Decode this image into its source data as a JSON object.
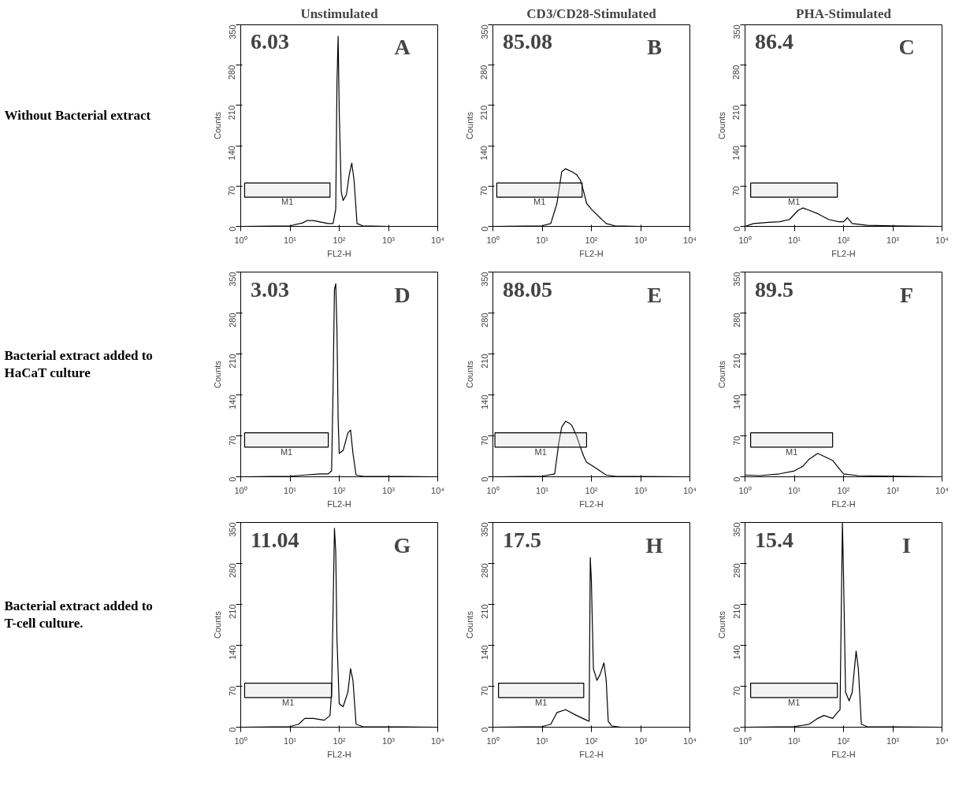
{
  "chart_data": [
    {
      "type": "line",
      "title": "Unstimulated",
      "xlabel": "FL2-H",
      "ylabel": "Counts",
      "log": "x",
      "grid": false,
      "xlim": [
        1,
        10000
      ],
      "xticks": [
        {
          "value": 1,
          "label": "10⁰"
        },
        {
          "value": 10,
          "label": "10¹"
        },
        {
          "value": 100,
          "label": "10²"
        },
        {
          "value": 1000,
          "label": "10³"
        },
        {
          "value": 10000,
          "label": "10⁴"
        }
      ],
      "ylim": [
        0,
        350
      ],
      "yticks": [
        0,
        70,
        140,
        210,
        280,
        350
      ],
      "annotations": [
        "6.03",
        "A",
        "Without Bacterial extract"
      ],
      "bands": [
        {
          "axis": "x",
          "from": 1.2,
          "to": 65,
          "label": "M1"
        }
      ],
      "series": [
        {
          "color": "#000000",
          "x": [
            1,
            10,
            18,
            22,
            30,
            45,
            60,
            75,
            85,
            90,
            95,
            100,
            110,
            120,
            140,
            160,
            180,
            200,
            230,
            300,
            1000,
            10000
          ],
          "values": [
            0,
            1,
            6,
            10,
            10,
            7,
            5,
            5,
            30,
            250,
            330,
            200,
            60,
            45,
            55,
            90,
            110,
            80,
            5,
            1,
            0,
            0
          ]
        }
      ]
    },
    {
      "type": "line",
      "title": "CD3/CD28-Stimulated",
      "xlabel": "FL2-H",
      "ylabel": "Counts",
      "log": "x",
      "grid": false,
      "xlim": [
        1,
        10000
      ],
      "xticks": [
        {
          "value": 1,
          "label": "10⁰"
        },
        {
          "value": 10,
          "label": "10¹"
        },
        {
          "value": 100,
          "label": "10²"
        },
        {
          "value": 1000,
          "label": "10³"
        },
        {
          "value": 10000,
          "label": "10⁴"
        }
      ],
      "ylim": [
        0,
        350
      ],
      "yticks": [
        0,
        70,
        140,
        210,
        280,
        350
      ],
      "annotations": [
        "85.08",
        "B"
      ],
      "bands": [
        {
          "axis": "x",
          "from": 1.2,
          "to": 65,
          "label": "M1"
        }
      ],
      "series": [
        {
          "color": "#000000",
          "x": [
            1,
            10,
            15,
            20,
            25,
            30,
            40,
            50,
            60,
            70,
            80,
            100,
            150,
            200,
            300,
            1000,
            10000
          ],
          "values": [
            0,
            1,
            5,
            40,
            95,
            100,
            95,
            90,
            80,
            60,
            40,
            30,
            15,
            5,
            1,
            0,
            0
          ]
        }
      ]
    },
    {
      "type": "line",
      "title": "PHA-Stimulated",
      "xlabel": "FL2-H",
      "ylabel": "Counts",
      "log": "x",
      "grid": false,
      "xlim": [
        1,
        10000
      ],
      "xticks": [
        {
          "value": 1,
          "label": "10⁰"
        },
        {
          "value": 10,
          "label": "10¹"
        },
        {
          "value": 100,
          "label": "10²"
        },
        {
          "value": 1000,
          "label": "10³"
        },
        {
          "value": 10000,
          "label": "10⁴"
        }
      ],
      "ylim": [
        0,
        350
      ],
      "yticks": [
        0,
        70,
        140,
        210,
        280,
        350
      ],
      "annotations": [
        "86.4",
        "C"
      ],
      "bands": [
        {
          "axis": "x",
          "from": 1.3,
          "to": 75,
          "label": "M1"
        }
      ],
      "series": [
        {
          "color": "#000000",
          "x": [
            1,
            1.5,
            3,
            5,
            8,
            12,
            15,
            20,
            30,
            50,
            80,
            100,
            120,
            150,
            300,
            1000,
            10000
          ],
          "values": [
            0,
            5,
            7,
            8,
            12,
            28,
            32,
            28,
            22,
            12,
            8,
            8,
            15,
            5,
            2,
            1,
            0
          ]
        }
      ]
    },
    {
      "type": "line",
      "xlabel": "FL2-H",
      "ylabel": "Counts",
      "log": "x",
      "grid": false,
      "xlim": [
        1,
        10000
      ],
      "xticks": [
        {
          "value": 1,
          "label": "10⁰"
        },
        {
          "value": 10,
          "label": "10¹"
        },
        {
          "value": 100,
          "label": "10²"
        },
        {
          "value": 1000,
          "label": "10³"
        },
        {
          "value": 10000,
          "label": "10⁴"
        }
      ],
      "ylim": [
        0,
        350
      ],
      "yticks": [
        0,
        70,
        140,
        210,
        280,
        350
      ],
      "annotations": [
        "3.03",
        "D",
        "Bacterial extract added to HaCaT culture"
      ],
      "bands": [
        {
          "axis": "x",
          "from": 1.2,
          "to": 60,
          "label": "M1"
        }
      ],
      "series": [
        {
          "color": "#000000",
          "x": [
            1,
            10,
            20,
            40,
            60,
            70,
            75,
            80,
            85,
            90,
            95,
            100,
            120,
            150,
            170,
            190,
            220,
            300,
            10000
          ],
          "values": [
            0,
            1,
            3,
            5,
            5,
            10,
            150,
            320,
            330,
            250,
            100,
            40,
            45,
            75,
            80,
            40,
            3,
            1,
            0
          ]
        }
      ]
    },
    {
      "type": "line",
      "xlabel": "FL2-H",
      "ylabel": "Counts",
      "log": "x",
      "grid": false,
      "xlim": [
        1,
        10000
      ],
      "xticks": [
        {
          "value": 1,
          "label": "10⁰"
        },
        {
          "value": 10,
          "label": "10¹"
        },
        {
          "value": 100,
          "label": "10²"
        },
        {
          "value": 1000,
          "label": "10³"
        },
        {
          "value": 10000,
          "label": "10⁴"
        }
      ],
      "ylim": [
        0,
        350
      ],
      "yticks": [
        0,
        70,
        140,
        210,
        280,
        350
      ],
      "annotations": [
        "88.05",
        "E"
      ],
      "bands": [
        {
          "axis": "x",
          "from": 1.1,
          "to": 80,
          "label": "M1"
        }
      ],
      "series": [
        {
          "color": "#000000",
          "x": [
            1,
            10,
            18,
            22,
            25,
            30,
            35,
            40,
            50,
            60,
            70,
            80,
            100,
            150,
            200,
            300,
            10000
          ],
          "values": [
            0,
            1,
            5,
            60,
            85,
            95,
            92,
            88,
            70,
            50,
            35,
            25,
            20,
            10,
            3,
            1,
            0
          ]
        }
      ]
    },
    {
      "type": "line",
      "xlabel": "FL2-H",
      "ylabel": "Counts",
      "log": "x",
      "grid": false,
      "xlim": [
        1,
        10000
      ],
      "xticks": [
        {
          "value": 1,
          "label": "10⁰"
        },
        {
          "value": 10,
          "label": "10¹"
        },
        {
          "value": 100,
          "label": "10²"
        },
        {
          "value": 1000,
          "label": "10³"
        },
        {
          "value": 10000,
          "label": "10⁴"
        }
      ],
      "ylim": [
        0,
        350
      ],
      "yticks": [
        0,
        70,
        140,
        210,
        280,
        350
      ],
      "annotations": [
        "89.5",
        "F"
      ],
      "bands": [
        {
          "axis": "x",
          "from": 1.3,
          "to": 60,
          "label": "M1"
        }
      ],
      "series": [
        {
          "color": "#000000",
          "x": [
            1,
            2,
            5,
            10,
            15,
            20,
            30,
            40,
            60,
            80,
            100,
            200,
            1000,
            10000
          ],
          "values": [
            3,
            2,
            5,
            10,
            18,
            30,
            40,
            35,
            28,
            15,
            5,
            2,
            1,
            0
          ]
        }
      ]
    },
    {
      "type": "line",
      "xlabel": "FL2-H",
      "ylabel": "Counts",
      "log": "x",
      "grid": false,
      "xlim": [
        1,
        10000
      ],
      "xticks": [
        {
          "value": 1,
          "label": "10⁰"
        },
        {
          "value": 10,
          "label": "10¹"
        },
        {
          "value": 100,
          "label": "10²"
        },
        {
          "value": 1000,
          "label": "10³"
        },
        {
          "value": 10000,
          "label": "10⁴"
        }
      ],
      "ylim": [
        0,
        350
      ],
      "yticks": [
        0,
        70,
        140,
        210,
        280,
        350
      ],
      "annotations": [
        "11.04",
        "G",
        "Bacterial extract added to T-cell culture."
      ],
      "bands": [
        {
          "axis": "x",
          "from": 1.2,
          "to": 70,
          "label": "M1"
        }
      ],
      "series": [
        {
          "color": "#000000",
          "x": [
            1,
            10,
            15,
            20,
            30,
            50,
            65,
            70,
            75,
            80,
            85,
            90,
            100,
            120,
            150,
            170,
            190,
            220,
            300,
            10000
          ],
          "values": [
            0,
            1,
            5,
            15,
            15,
            12,
            20,
            60,
            200,
            340,
            300,
            150,
            40,
            35,
            60,
            100,
            80,
            5,
            1,
            0
          ]
        }
      ]
    },
    {
      "type": "line",
      "xlabel": "FL2-H",
      "ylabel": "Counts",
      "log": "x",
      "grid": false,
      "xlim": [
        1,
        10000
      ],
      "xticks": [
        {
          "value": 1,
          "label": "10⁰"
        },
        {
          "value": 10,
          "label": "10¹"
        },
        {
          "value": 100,
          "label": "10²"
        },
        {
          "value": 1000,
          "label": "10³"
        },
        {
          "value": 10000,
          "label": "10⁴"
        }
      ],
      "ylim": [
        0,
        350
      ],
      "yticks": [
        0,
        70,
        140,
        210,
        280,
        350
      ],
      "annotations": [
        "17.5",
        "H"
      ],
      "bands": [
        {
          "axis": "x",
          "from": 1.3,
          "to": 70,
          "label": "M1"
        }
      ],
      "series": [
        {
          "color": "#000000",
          "x": [
            1,
            10,
            15,
            20,
            30,
            50,
            80,
            90,
            95,
            100,
            110,
            130,
            150,
            180,
            200,
            220,
            260,
            400,
            10000
          ],
          "values": [
            0,
            1,
            5,
            25,
            30,
            20,
            12,
            10,
            290,
            250,
            100,
            80,
            90,
            110,
            80,
            10,
            2,
            0,
            0
          ]
        }
      ]
    },
    {
      "type": "line",
      "xlabel": "FL2-H",
      "ylabel": "Counts",
      "log": "x",
      "grid": false,
      "xlim": [
        1,
        10000
      ],
      "xticks": [
        {
          "value": 1,
          "label": "10⁰"
        },
        {
          "value": 10,
          "label": "10¹"
        },
        {
          "value": 100,
          "label": "10²"
        },
        {
          "value": 1000,
          "label": "10³"
        },
        {
          "value": 10000,
          "label": "10⁴"
        }
      ],
      "ylim": [
        0,
        350
      ],
      "yticks": [
        0,
        70,
        140,
        210,
        280,
        350
      ],
      "annotations": [
        "15.4",
        "I"
      ],
      "bands": [
        {
          "axis": "x",
          "from": 1.3,
          "to": 75,
          "label": "M1"
        }
      ],
      "series": [
        {
          "color": "#000000",
          "x": [
            1,
            10,
            20,
            30,
            40,
            60,
            75,
            85,
            90,
            95,
            100,
            110,
            130,
            150,
            180,
            200,
            230,
            300,
            10000
          ],
          "values": [
            0,
            1,
            5,
            15,
            20,
            15,
            25,
            30,
            200,
            350,
            260,
            60,
            45,
            60,
            130,
            100,
            5,
            1,
            0
          ]
        }
      ]
    }
  ]
}
